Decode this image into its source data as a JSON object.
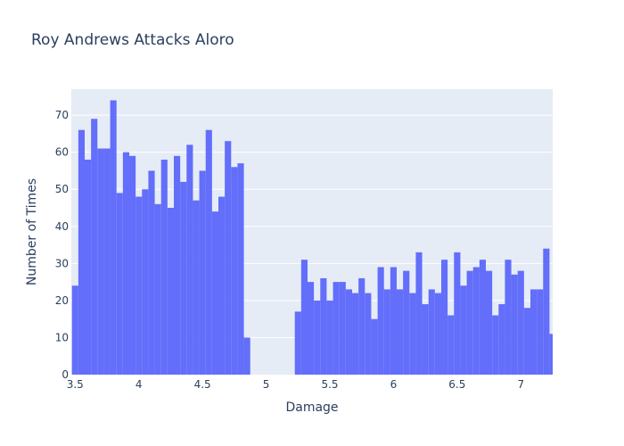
{
  "chart_data": {
    "type": "bar",
    "title": "Roy Andrews Attacks Aloro",
    "xlabel": "Damage",
    "ylabel": "Number of Times",
    "xlim": [
      3.47,
      7.25
    ],
    "ylim": [
      0,
      77
    ],
    "bin_width": 0.05,
    "x_ticks": [
      3.5,
      4,
      4.5,
      5,
      5.5,
      6,
      6.5,
      7
    ],
    "x_tick_labels": [
      "3.5",
      "4",
      "4.5",
      "5",
      "5.5",
      "6",
      "6.5",
      "7"
    ],
    "y_ticks": [
      0,
      10,
      20,
      30,
      40,
      50,
      60,
      70
    ],
    "y_tick_labels": [
      "0",
      "10",
      "20",
      "30",
      "40",
      "50",
      "60",
      "70"
    ],
    "grid": true,
    "colors": {
      "bar": "#636efa",
      "plot_bg": "#e5ecf6",
      "grid": "#ffffff",
      "text": "#2a3f5f"
    },
    "bins": [
      {
        "x": 3.5,
        "y": 24
      },
      {
        "x": 3.55,
        "y": 66
      },
      {
        "x": 3.6,
        "y": 58
      },
      {
        "x": 3.65,
        "y": 69
      },
      {
        "x": 3.7,
        "y": 61
      },
      {
        "x": 3.75,
        "y": 61
      },
      {
        "x": 3.8,
        "y": 74
      },
      {
        "x": 3.85,
        "y": 49
      },
      {
        "x": 3.9,
        "y": 60
      },
      {
        "x": 3.95,
        "y": 59
      },
      {
        "x": 4.0,
        "y": 48
      },
      {
        "x": 4.05,
        "y": 50
      },
      {
        "x": 4.1,
        "y": 55
      },
      {
        "x": 4.15,
        "y": 46
      },
      {
        "x": 4.2,
        "y": 58
      },
      {
        "x": 4.25,
        "y": 45
      },
      {
        "x": 4.3,
        "y": 59
      },
      {
        "x": 4.35,
        "y": 52
      },
      {
        "x": 4.4,
        "y": 62
      },
      {
        "x": 4.45,
        "y": 47
      },
      {
        "x": 4.5,
        "y": 55
      },
      {
        "x": 4.55,
        "y": 66
      },
      {
        "x": 4.6,
        "y": 44
      },
      {
        "x": 4.65,
        "y": 48
      },
      {
        "x": 4.7,
        "y": 63
      },
      {
        "x": 4.75,
        "y": 56
      },
      {
        "x": 4.8,
        "y": 57
      },
      {
        "x": 4.85,
        "y": 10
      },
      {
        "x": 5.25,
        "y": 17
      },
      {
        "x": 5.3,
        "y": 31
      },
      {
        "x": 5.35,
        "y": 25
      },
      {
        "x": 5.4,
        "y": 20
      },
      {
        "x": 5.45,
        "y": 26
      },
      {
        "x": 5.5,
        "y": 20
      },
      {
        "x": 5.55,
        "y": 25
      },
      {
        "x": 5.6,
        "y": 25
      },
      {
        "x": 5.65,
        "y": 23
      },
      {
        "x": 5.7,
        "y": 22
      },
      {
        "x": 5.75,
        "y": 26
      },
      {
        "x": 5.8,
        "y": 22
      },
      {
        "x": 5.85,
        "y": 15
      },
      {
        "x": 5.9,
        "y": 29
      },
      {
        "x": 5.95,
        "y": 23
      },
      {
        "x": 6.0,
        "y": 29
      },
      {
        "x": 6.05,
        "y": 23
      },
      {
        "x": 6.1,
        "y": 28
      },
      {
        "x": 6.15,
        "y": 22
      },
      {
        "x": 6.2,
        "y": 33
      },
      {
        "x": 6.25,
        "y": 19
      },
      {
        "x": 6.3,
        "y": 23
      },
      {
        "x": 6.35,
        "y": 22
      },
      {
        "x": 6.4,
        "y": 31
      },
      {
        "x": 6.45,
        "y": 16
      },
      {
        "x": 6.5,
        "y": 33
      },
      {
        "x": 6.55,
        "y": 24
      },
      {
        "x": 6.6,
        "y": 28
      },
      {
        "x": 6.65,
        "y": 29
      },
      {
        "x": 6.7,
        "y": 31
      },
      {
        "x": 6.75,
        "y": 28
      },
      {
        "x": 6.8,
        "y": 16
      },
      {
        "x": 6.85,
        "y": 19
      },
      {
        "x": 6.9,
        "y": 31
      },
      {
        "x": 6.95,
        "y": 27
      },
      {
        "x": 7.0,
        "y": 28
      },
      {
        "x": 7.05,
        "y": 18
      },
      {
        "x": 7.1,
        "y": 23
      },
      {
        "x": 7.15,
        "y": 23
      },
      {
        "x": 7.2,
        "y": 34
      },
      {
        "x": 7.25,
        "y": 11
      }
    ]
  }
}
